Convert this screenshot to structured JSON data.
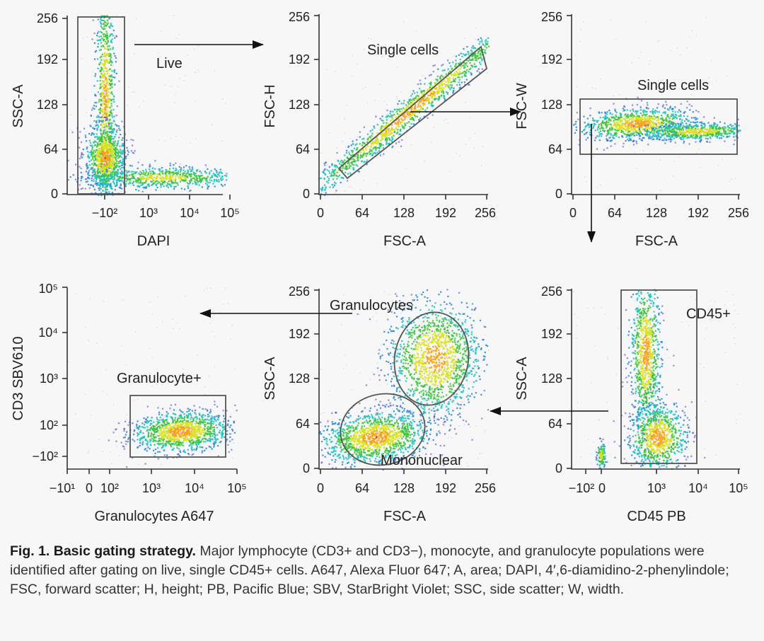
{
  "colors": {
    "density_scale": [
      "#3b3bc4",
      "#2f86d6",
      "#1fc0c0",
      "#3cc43c",
      "#d8e020",
      "#f7a21b",
      "#e82a1a"
    ],
    "low_density": "#8c8ce0",
    "gate": "#555555",
    "axis": "#333333",
    "background": "#f7f7f7"
  },
  "caption": {
    "title": "Fig. 1. Basic gating strategy.",
    "body": " Major lymphocyte (CD3+ and CD3−), monocyte, and granulocyte populations were identified after gating on live, single CD45+ cells. A647, Alexa Fluor 647; A, area; DAPI, 4′,6-diamidino-2-phenylindole; FSC, forward scatter; H, height; PB, Pacific Blue; SBV, StarBright Violet; SSC, side scatter; W, width."
  },
  "flow": [
    "Live",
    "Single cells (FSC-H)",
    "Single cells (FSC-W)",
    "CD45+",
    "Granulocytes",
    "Granulocyte+"
  ],
  "chart_data": [
    {
      "id": "p1",
      "type": "scatter",
      "title": "",
      "xlabel": "DAPI",
      "ylabel": "SSC-A",
      "x_scale": "biexponential",
      "y_scale": "linear",
      "xticks": [
        "−10²",
        "10³",
        "10⁴",
        "10⁵"
      ],
      "yticks": [
        "0",
        "64",
        "128",
        "192",
        "256"
      ],
      "xlim": [
        -300,
        100000
      ],
      "ylim": [
        0,
        256
      ],
      "gates": [
        {
          "label": "Live",
          "shape": "rectangle",
          "x": [
            -2000,
            150
          ],
          "y": [
            0,
            256
          ]
        }
      ],
      "populations": [
        {
          "name": "",
          "center": [
            -100,
            140
          ],
          "description": "vertical streak across full SSC range"
        },
        {
          "name": "",
          "center": [
            -100,
            52
          ],
          "description": "dense low-SSC cluster"
        },
        {
          "name": "",
          "center": [
            5000,
            25
          ],
          "description": "horizontal DAPI+ smear at low SSC"
        }
      ]
    },
    {
      "id": "p2",
      "type": "scatter",
      "title": "",
      "xlabel": "FSC-A",
      "ylabel": "FSC-H",
      "xticks": [
        "0",
        "64",
        "128",
        "192",
        "256"
      ],
      "yticks": [
        "0",
        "64",
        "128",
        "192",
        "256"
      ],
      "xlim": [
        0,
        256
      ],
      "ylim": [
        0,
        256
      ],
      "gates": [
        {
          "label": "Single cells",
          "shape": "polygon",
          "vertices": [
            [
              30,
              38
            ],
            [
              238,
              212
            ],
            [
              244,
              180
            ],
            [
              40,
              24
            ]
          ]
        }
      ],
      "populations": [
        {
          "name": "",
          "center": [
            120,
            108
          ],
          "description": "diagonal singlet band from (40,35) to (235,195)"
        }
      ]
    },
    {
      "id": "p3",
      "type": "scatter",
      "title": "",
      "xlabel": "FSC-A",
      "ylabel": "FSC-W",
      "xticks": [
        "0",
        "64",
        "128",
        "192",
        "256"
      ],
      "yticks": [
        "0",
        "64",
        "128",
        "192",
        "256"
      ],
      "xlim": [
        0,
        256
      ],
      "ylim": [
        0,
        256
      ],
      "gates": [
        {
          "label": "Single cells",
          "shape": "rectangle",
          "x": [
            12,
            256
          ],
          "y": [
            56,
            136
          ]
        }
      ],
      "populations": [
        {
          "name": "",
          "center": [
            90,
            100
          ],
          "description": "horizontal band tapering to the right, FSC-W 80–115"
        }
      ]
    },
    {
      "id": "p4",
      "type": "scatter",
      "title": "",
      "xlabel": "Granulocytes A647",
      "ylabel": "CD3 SBV610",
      "xticks": [
        "−10¹",
        "0",
        "10²",
        "10³",
        "10⁴",
        "10⁵"
      ],
      "yticks": [
        "−10²",
        "10²",
        "10³",
        "10⁴",
        "10⁵"
      ],
      "x_scale": "biexponential",
      "y_scale": "biexponential",
      "gates": [
        {
          "label": "Granulocyte+",
          "shape": "rectangle",
          "x": [
            300,
            50000
          ],
          "y": [
            -150,
            800
          ]
        }
      ],
      "populations": [
        {
          "name": "",
          "center": [
            5000,
            90
          ],
          "description": "teardrop cluster, CD3 low"
        }
      ]
    },
    {
      "id": "p5",
      "type": "scatter",
      "title": "",
      "xlabel": "FSC-A",
      "ylabel": "SSC-A",
      "xticks": [
        "0",
        "64",
        "128",
        "192",
        "256"
      ],
      "yticks": [
        "0",
        "64",
        "128",
        "192",
        "256"
      ],
      "xlim": [
        0,
        256
      ],
      "ylim": [
        0,
        256
      ],
      "gates": [
        {
          "label": "Granulocytes",
          "shape": "ellipse",
          "center": [
            183,
            154
          ],
          "radii": [
            50,
            66
          ]
        },
        {
          "label": "Mononuclear",
          "shape": "ellipse",
          "center": [
            87,
            43
          ],
          "radii": [
            58,
            46
          ]
        }
      ],
      "populations": [
        {
          "name": "",
          "center": [
            183,
            150
          ],
          "description": "large round cluster"
        },
        {
          "name": "",
          "center": [
            82,
            38
          ],
          "description": "dense low-scatter cluster"
        }
      ]
    },
    {
      "id": "p6",
      "type": "scatter",
      "title": "",
      "xlabel": "CD45 PB",
      "ylabel": "SSC-A",
      "xticks": [
        "−10²",
        "0",
        "10³",
        "10⁴",
        "10⁵"
      ],
      "yticks": [
        "0",
        "64",
        "128",
        "192",
        "256"
      ],
      "x_scale": "biexponential",
      "y_scale": "linear",
      "ylim": [
        0,
        256
      ],
      "gates": [
        {
          "label": "CD45+",
          "shape": "rectangle",
          "x": [
            200,
            4000
          ],
          "y": [
            8,
            256
          ]
        }
      ],
      "populations": [
        {
          "name": "",
          "center": [
            800,
            160
          ],
          "description": "high-SSC CD45+ cluster (granulocytes)"
        },
        {
          "name": "",
          "center": [
            1100,
            40
          ],
          "description": "low-SSC CD45+ cluster (lymphocytes)"
        },
        {
          "name": "",
          "center": [
            0,
            20
          ],
          "description": "small CD45− cluster"
        }
      ]
    }
  ]
}
